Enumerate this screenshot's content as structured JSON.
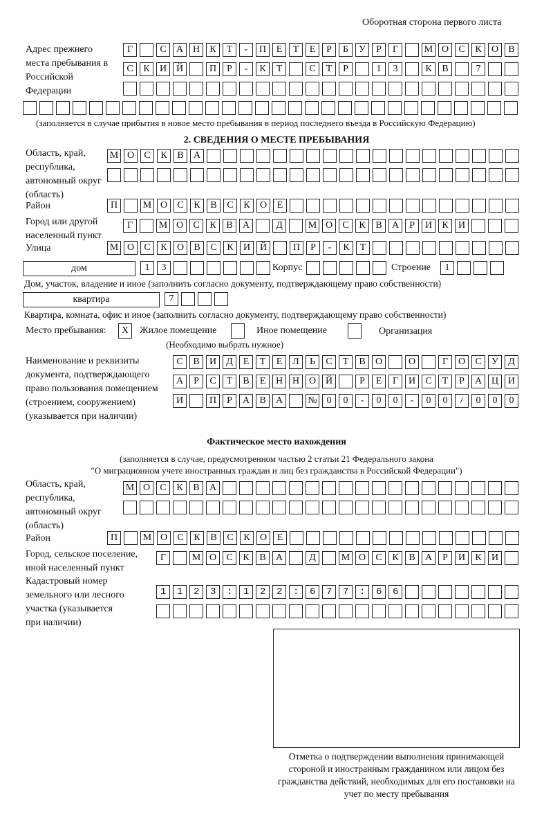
{
  "header": "Оборотная сторона первого листа",
  "prev_address": {
    "label": "Адрес прежнего места пребывания в Российской Федерации",
    "rows": [
      "Г САНКТ-ПЕТЕРБУРГ МОСКОВ",
      "СКИЙ ПР-КТ СТР 13 КВ 7",
      "",
      ""
    ],
    "note": "(заполняется в случае прибытия в новое место пребывания в период последнего въезда в Российскую Федерацию)"
  },
  "section2": {
    "title": "2. СВЕДЕНИЯ О МЕСТЕ ПРЕБЫВАНИЯ",
    "region_label": "Область, край, республика, автономный округ (область)",
    "region_rows": [
      "МОСКВА",
      ""
    ],
    "district_label": "Район",
    "district": "П МОСКВСКОЕ",
    "city_label": "Город или другой населенный пункт",
    "city": "Г МОСКВА Д МОСКВАРИКИ",
    "street_label": "Улица",
    "street": "МОСКОВСКИЙ ПР-КТ",
    "house_type": "дом",
    "house": "13",
    "korpus_label": "Корпус",
    "korpus": "",
    "building_label": "Строение",
    "building": "1",
    "house_note": "Дом, участок, владение и иное (заполнить согласно документу, подтверждающему право собственности)",
    "flat_type": "квартира",
    "flat": "7",
    "flat_note": "Квартира, комната, офис и иное (заполнить согласно документу, подтверждающему право собственности)",
    "stay_label": "Место пребывания:",
    "stay_options": [
      {
        "label": "Жилое помещение",
        "mark": "X"
      },
      {
        "label": "Иное помещение",
        "mark": ""
      },
      {
        "label": "Организация",
        "mark": ""
      }
    ],
    "stay_note": "(Необходимо выбрать нужное)",
    "doc_label": "Наименование и реквизиты документа, подтверждающего право пользования помещением (строением, сооружением) (указывается при наличии)",
    "doc_rows": [
      "СВИДЕТЕЛЬСТВО О ГОСУД",
      "АРСТВЕННОЙ РЕГИСТРАЦИ",
      "И ПРАВА №00-00-00/000"
    ]
  },
  "actual": {
    "title": "Фактическое место нахождения",
    "note1": "(заполняется в случае, предусмотренном частью 2 статьи 21 Федерального закона",
    "note2": "\"О миграционном учете иностранных граждан и лиц без гражданства в Российской Федерации\")",
    "region_label": "Область, край, республика, автономный округ (область)",
    "region_rows": [
      "МОСКВА",
      ""
    ],
    "district_label": "Район",
    "district": "П МОСКВСКОЕ",
    "city_label": "Город, сельское поселение, иной населенный пункт",
    "city": "Г МОСКВА Д МОСКВАРИКИ",
    "cadastre_label": "Кадастровый номер земельного или лесного участка (указывается при наличии)",
    "cadastre_rows": [
      "1123:122:677:66",
      ""
    ]
  },
  "stamp": {
    "caption": "Отметка о подтверждении выполнения принимающей стороной и иностранным гражданином или лицом без гражданства действий, необходимых для его постановки на учет по месту пребывания"
  }
}
